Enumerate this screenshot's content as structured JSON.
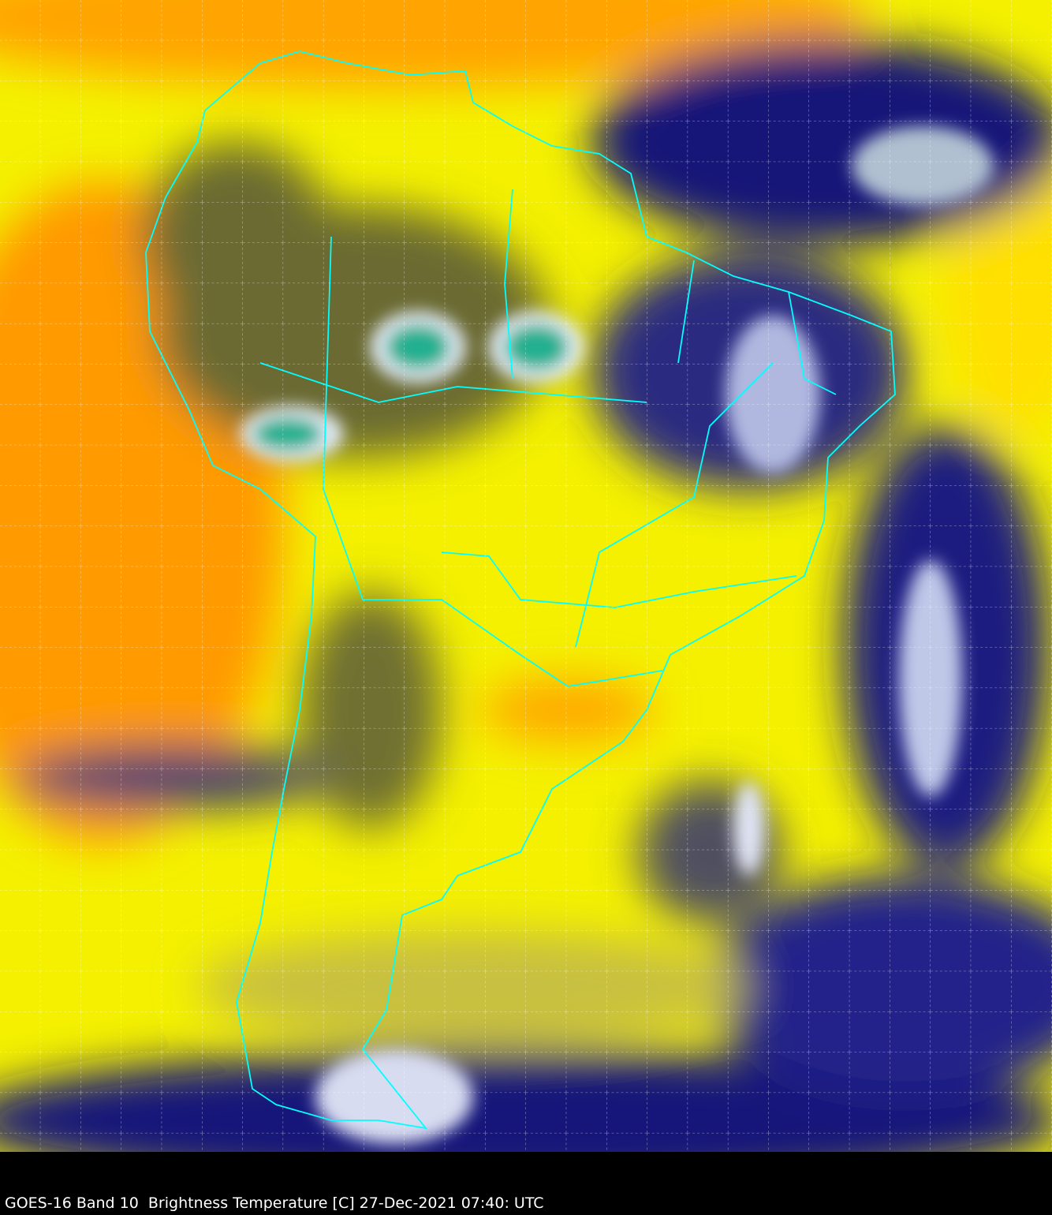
{
  "caption": "GOES-16 Band 10  Brightness Temperature [C] 27-Dec-2021 07:40: UTC",
  "colors": {
    "warm": "#ff8c00",
    "mid": "#ffff00",
    "olive": "#8a8a20",
    "cold": "#0a0a78",
    "coldest": "#20b090",
    "borders": "#00ffff",
    "grid": "#ffffff",
    "background": "#000000"
  },
  "layers": [
    "brightness-temperature",
    "country-borders",
    "lat-lon-grid"
  ]
}
